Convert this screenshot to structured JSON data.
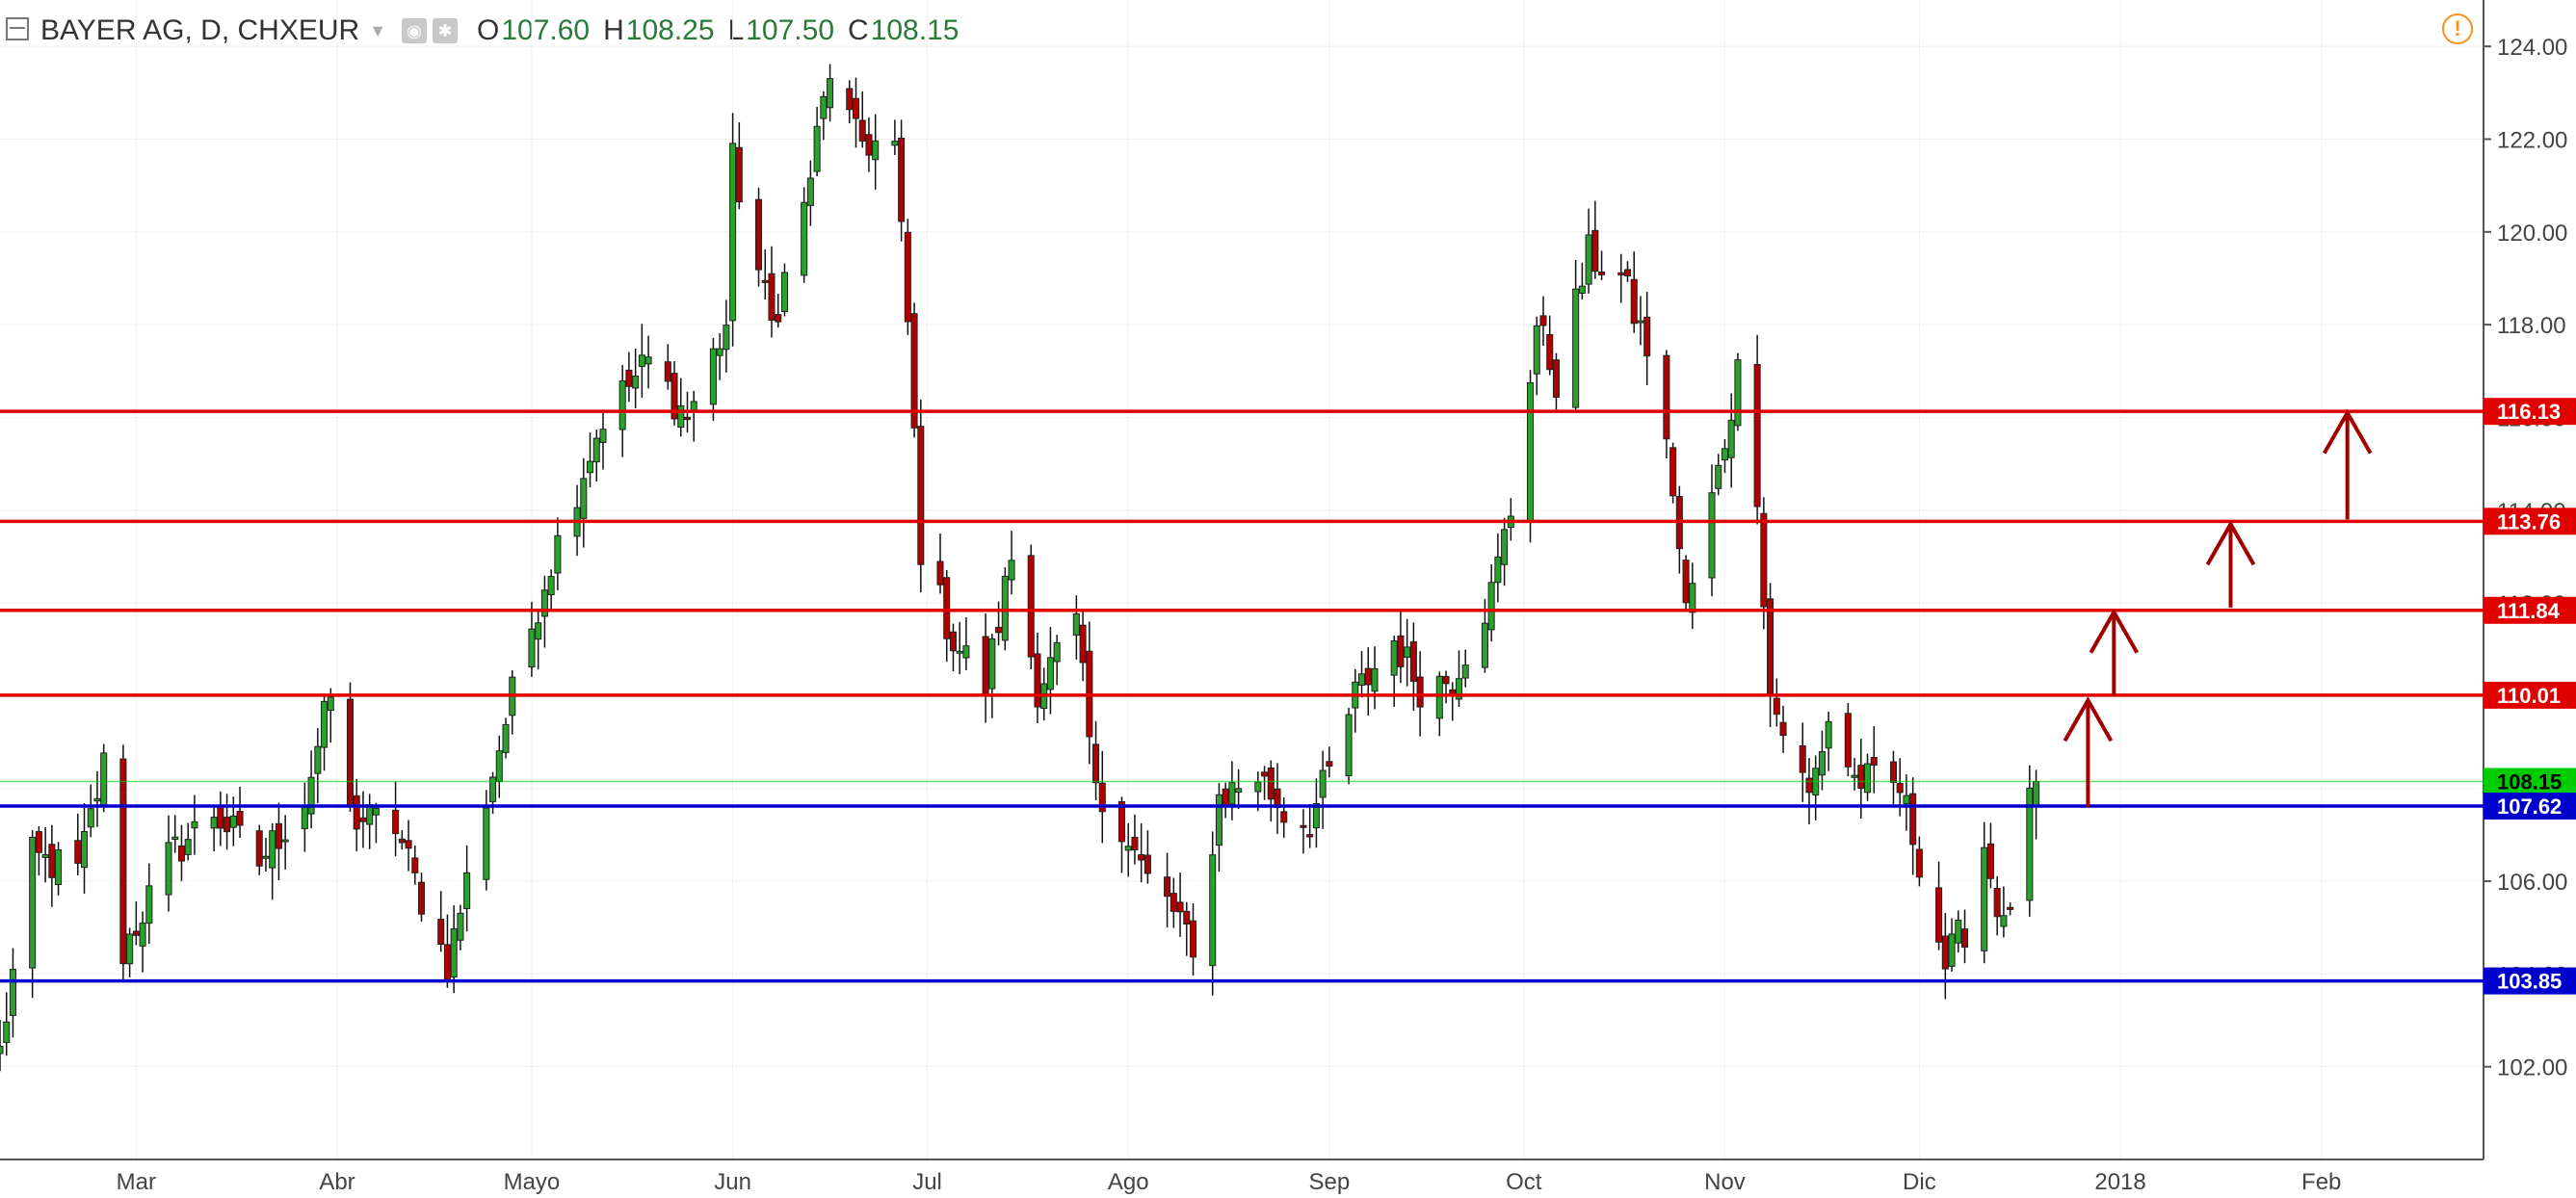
{
  "header": {
    "symbol": "BAYER AG, D, CHXEUR",
    "ohlc": [
      {
        "k": "O",
        "v": "107.60"
      },
      {
        "k": "H",
        "v": "108.25"
      },
      {
        "k": "L",
        "v": "107.50"
      },
      {
        "k": "C",
        "v": "108.15"
      }
    ],
    "icons": [
      "menu-icon",
      "eye-icon",
      "gear-icon"
    ]
  },
  "alert_icon": "alert-icon",
  "colors": {
    "up": "#2ca02c",
    "down": "#b00000",
    "red_line": "#e00000",
    "blue_line": "#0000cc",
    "last": "#00cc00"
  },
  "chart_data": {
    "type": "candlestick",
    "title": "BAYER AG, D, CHXEUR",
    "ylim": [
      100.0,
      125.0
    ],
    "y_ticks": [
      102,
      104,
      106,
      108,
      110,
      112,
      114,
      116,
      118,
      120,
      122,
      124
    ],
    "y_tick_labels": [
      "102.00",
      "104.00",
      "106.00",
      "108.00",
      "110.00",
      "112.00",
      "114.00",
      "116.00",
      "118.00",
      "120.00",
      "122.00",
      "124.00"
    ],
    "x_ticks": [
      {
        "label": "Mar",
        "date": "2017-03-01"
      },
      {
        "label": "Abr",
        "date": "2017-04-01"
      },
      {
        "label": "Mayo",
        "date": "2017-05-01"
      },
      {
        "label": "Jun",
        "date": "2017-06-01"
      },
      {
        "label": "Jul",
        "date": "2017-07-01"
      },
      {
        "label": "Ago",
        "date": "2017-08-01"
      },
      {
        "label": "Sep",
        "date": "2017-09-01"
      },
      {
        "label": "Oct",
        "date": "2017-10-01"
      },
      {
        "label": "Nov",
        "date": "2017-11-01"
      },
      {
        "label": "Dic",
        "date": "2017-12-01"
      },
      {
        "label": "2018",
        "date": "2018-01-01"
      },
      {
        "label": "Feb",
        "date": "2018-02-01"
      }
    ],
    "xlim": [
      "2017-02-08",
      "2018-02-26"
    ],
    "path": [
      [
        "2017-02-08",
        102.3
      ],
      [
        "2017-02-13",
        106.5
      ],
      [
        "2017-02-20",
        106.2
      ],
      [
        "2017-02-24",
        108.5
      ],
      [
        "2017-02-27",
        104.5
      ],
      [
        "2017-03-06",
        106.5
      ],
      [
        "2017-03-13",
        107.5
      ],
      [
        "2017-03-20",
        106.4
      ],
      [
        "2017-03-27",
        107.8
      ],
      [
        "2017-03-31",
        110.0
      ],
      [
        "2017-04-03",
        107.4
      ],
      [
        "2017-04-10",
        107.2
      ],
      [
        "2017-04-13",
        106.0
      ],
      [
        "2017-04-18",
        104.2
      ],
      [
        "2017-04-24",
        107.8
      ],
      [
        "2017-04-28",
        110.0
      ],
      [
        "2017-05-03",
        112.5
      ],
      [
        "2017-05-08",
        114.5
      ],
      [
        "2017-05-12",
        116.0
      ],
      [
        "2017-05-19",
        117.2
      ],
      [
        "2017-05-25",
        116.0
      ],
      [
        "2017-05-31",
        118.0
      ],
      [
        "2017-06-01",
        121.5
      ],
      [
        "2017-06-07",
        118.0
      ],
      [
        "2017-06-12",
        120.5
      ],
      [
        "2017-06-16",
        123.5
      ],
      [
        "2017-06-20",
        122.0
      ],
      [
        "2017-06-26",
        121.8
      ],
      [
        "2017-06-28",
        118.0
      ],
      [
        "2017-06-30",
        113.2
      ],
      [
        "2017-07-05",
        111.2
      ],
      [
        "2017-07-10",
        110.2
      ],
      [
        "2017-07-14",
        113.0
      ],
      [
        "2017-07-18",
        110.2
      ],
      [
        "2017-07-24",
        111.5
      ],
      [
        "2017-07-27",
        107.8
      ],
      [
        "2017-07-31",
        107.3
      ],
      [
        "2017-08-04",
        106.0
      ],
      [
        "2017-08-09",
        105.2
      ],
      [
        "2017-08-11",
        104.2
      ],
      [
        "2017-08-15",
        107.8
      ],
      [
        "2017-08-21",
        108.3
      ],
      [
        "2017-08-25",
        107.5
      ],
      [
        "2017-08-29",
        107.3
      ],
      [
        "2017-09-01",
        108.3
      ],
      [
        "2017-09-05",
        110.0
      ],
      [
        "2017-09-11",
        111.2
      ],
      [
        "2017-09-15",
        110.2
      ],
      [
        "2017-09-20",
        110.4
      ],
      [
        "2017-09-26",
        112.2
      ],
      [
        "2017-09-29",
        114.0
      ],
      [
        "2017-10-03",
        118.0
      ],
      [
        "2017-10-06",
        116.8
      ],
      [
        "2017-10-11",
        119.5
      ],
      [
        "2017-10-16",
        119.0
      ],
      [
        "2017-10-20",
        117.5
      ],
      [
        "2017-10-24",
        114.5
      ],
      [
        "2017-10-26",
        111.8
      ],
      [
        "2017-10-31",
        114.8
      ],
      [
        "2017-11-03",
        117.0
      ],
      [
        "2017-11-06",
        114.5
      ],
      [
        "2017-11-08",
        110.0
      ],
      [
        "2017-11-14",
        107.8
      ],
      [
        "2017-11-17",
        109.5
      ],
      [
        "2017-11-21",
        108.2
      ],
      [
        "2017-11-28",
        108.0
      ],
      [
        "2017-12-01",
        106.5
      ],
      [
        "2017-12-05",
        104.2
      ],
      [
        "2017-12-08",
        105.0
      ],
      [
        "2017-12-11",
        106.8
      ],
      [
        "2017-12-14",
        104.9
      ],
      [
        "2017-12-18",
        107.6
      ],
      [
        "2017-12-19",
        108.15
      ]
    ],
    "horizontal_levels": [
      {
        "value": 116.13,
        "label": "116.13",
        "color": "#e00000"
      },
      {
        "value": 113.76,
        "label": "113.76",
        "color": "#e00000"
      },
      {
        "value": 111.84,
        "label": "111.84",
        "color": "#e00000"
      },
      {
        "value": 110.01,
        "label": "110.01",
        "color": "#e00000"
      },
      {
        "value": 108.15,
        "label": "108.15",
        "color": "#00cc00"
      },
      {
        "value": 107.62,
        "label": "107.62",
        "color": "#0000cc"
      },
      {
        "value": 103.85,
        "label": "103.85",
        "color": "#0000cc"
      }
    ],
    "arrows": [
      {
        "date": "2017-12-27",
        "from": 107.6,
        "to": 109.9
      },
      {
        "date": "2017-12-31",
        "from": 110.0,
        "to": 111.8
      },
      {
        "date": "2018-01-18",
        "from": 111.9,
        "to": 113.7
      },
      {
        "date": "2018-02-05",
        "from": 113.8,
        "to": 116.1
      }
    ],
    "grid": true
  }
}
